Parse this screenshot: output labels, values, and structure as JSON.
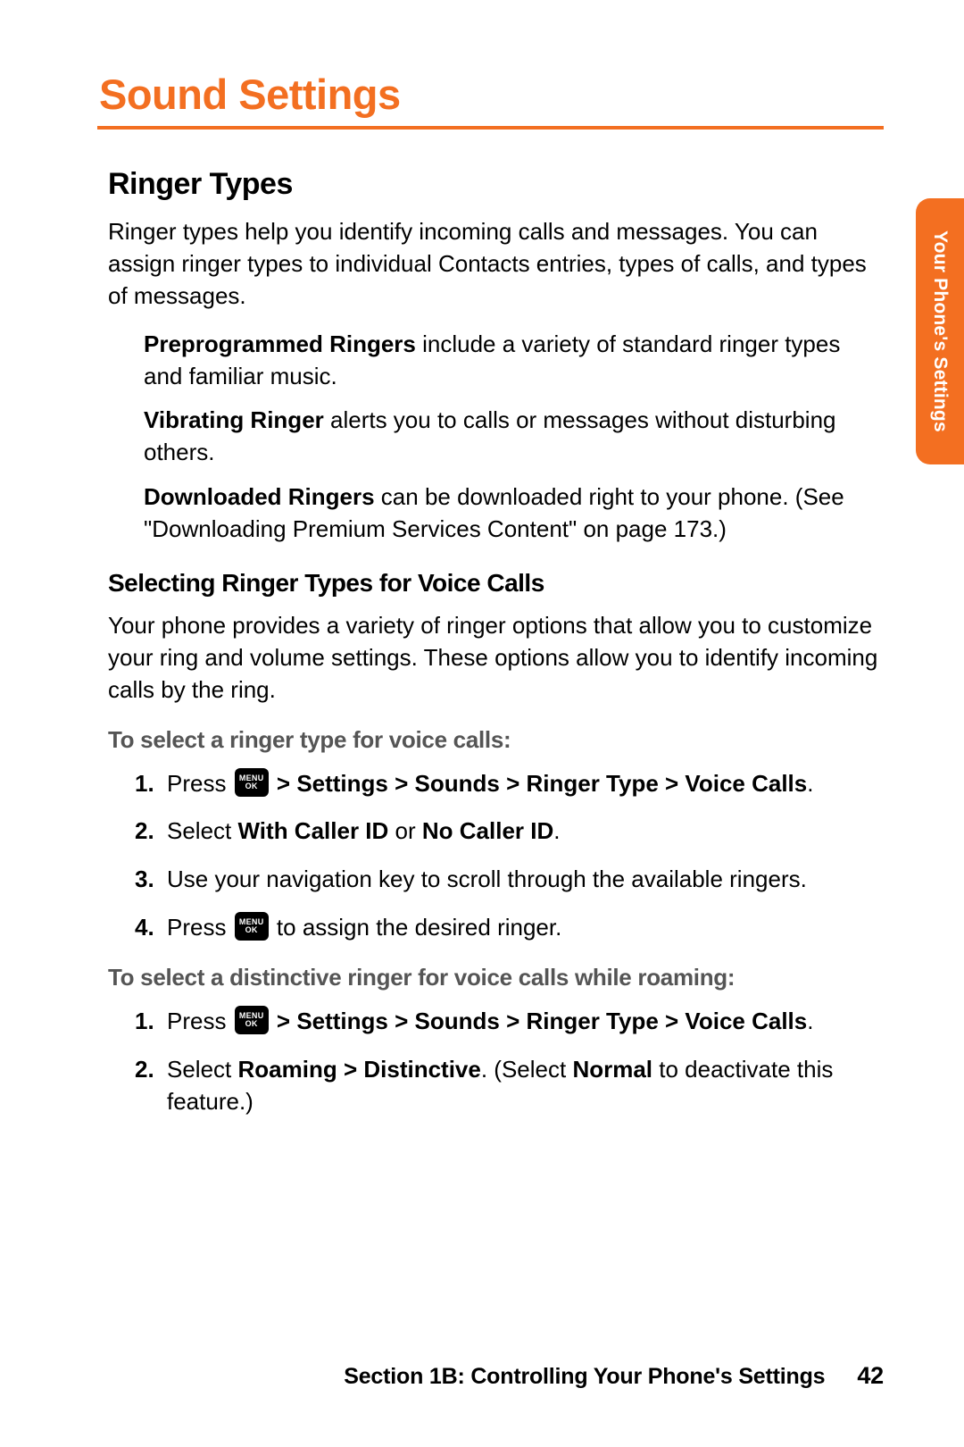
{
  "colors": {
    "accent": "#f36f21",
    "text": "#000000",
    "muted": "#555555",
    "white": "#ffffff"
  },
  "mainTitle": "Sound Settings",
  "sectionTitle": "Ringer Types",
  "introText": "Ringer types help you identify incoming calls and messages. You can assign ringer types to individual Contacts entries, types of calls, and types of messages.",
  "ringers": {
    "preprogrammed": {
      "label": "Preprogrammed Ringers",
      "text": " include a variety of standard ringer types and familiar music."
    },
    "vibrating": {
      "label": "Vibrating Ringer",
      "text": " alerts you to calls or messages without disturbing others."
    },
    "downloaded": {
      "label": "Downloaded Ringers",
      "text": " can be downloaded right to your phone. (See \"Downloading Premium Services Content\" on page 173.)"
    }
  },
  "subsectionTitle": "Selecting Ringer Types for Voice Calls",
  "subsectionText": "Your phone provides a variety of ringer options that allow you to customize your ring and volume settings. These options allow you to identify incoming calls by the ring.",
  "procedures": {
    "voice": {
      "title": "To select a ringer type for voice calls:",
      "steps": [
        {
          "num": "1.",
          "pre": "Press ",
          "hasKey": true,
          "path": " > Settings > Sounds > Ringer Type > Voice Calls",
          "post": "."
        },
        {
          "num": "2.",
          "pre": "Select ",
          "bold1": "With Caller ID",
          "mid": " or ",
          "bold2": "No Caller ID",
          "post": "."
        },
        {
          "num": "3.",
          "plain": "Use your navigation key to scroll through the available ringers."
        },
        {
          "num": "4.",
          "pre": "Press ",
          "hasKey": true,
          "post2": " to assign the desired ringer."
        }
      ]
    },
    "roaming": {
      "title": "To select a distinctive ringer for voice calls while roaming:",
      "steps": [
        {
          "num": "1.",
          "pre": "Press ",
          "hasKey": true,
          "path": " > Settings > Sounds > Ringer Type > Voice Calls",
          "post": "."
        },
        {
          "num": "2.",
          "pre": "Select ",
          "bold1": "Roaming > Distinctive",
          "mid": ". (Select ",
          "bold2": "Normal",
          "post": " to deactivate this feature.)"
        }
      ]
    }
  },
  "menuKey": {
    "top": "MENU",
    "bot": "OK"
  },
  "sideTab": "Your Phone's Settings",
  "footer": {
    "text": "Section 1B: Controlling Your Phone's Settings",
    "page": "42"
  }
}
